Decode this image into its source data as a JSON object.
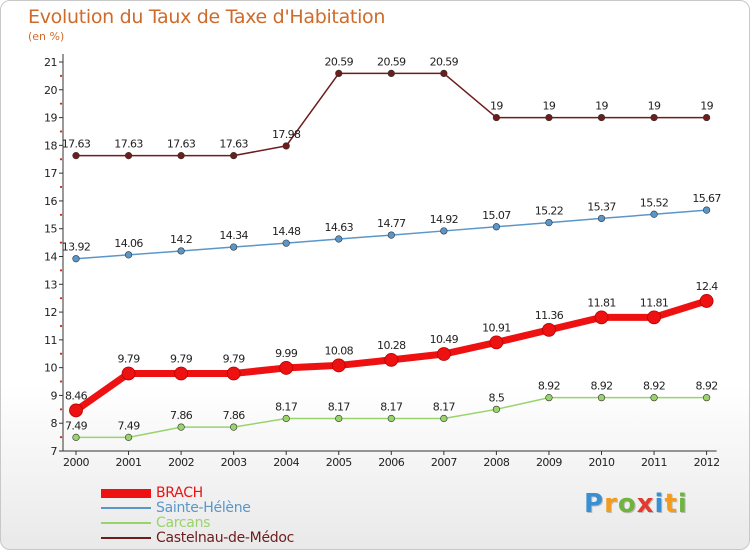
{
  "title": "Evolution du Taux de Taxe d'Habitation",
  "subtitle": "(en %)",
  "logo": {
    "text": "Proxiti",
    "letter_colors": [
      "#3a8fd3",
      "#f39b1c",
      "#6fb43f",
      "#e33a2e",
      "#3a8fd3",
      "#f39b1c",
      "#6fb43f"
    ]
  },
  "chart_data": {
    "type": "line",
    "x": [
      "2000",
      "2001",
      "2002",
      "2003",
      "2004",
      "2005",
      "2006",
      "2007",
      "2008",
      "2009",
      "2010",
      "2011",
      "2012"
    ],
    "ylim": [
      7,
      21
    ],
    "yticks": [
      7,
      8,
      9,
      10,
      11,
      12,
      13,
      14,
      15,
      16,
      17,
      18,
      19,
      20,
      21
    ],
    "grid": false,
    "legend_position": "bottom",
    "series": [
      {
        "name": "Castelnau-de-Médoc",
        "color": "#6e1c1c",
        "values": [
          17.63,
          17.63,
          17.63,
          17.63,
          17.98,
          20.59,
          20.59,
          20.59,
          19,
          19,
          19,
          19,
          19
        ],
        "labels": [
          "17.63",
          "17.63",
          "17.63",
          "17.63",
          "17.98",
          "20.59",
          "20.59",
          "20.59",
          "19",
          "19",
          "19",
          "19",
          "19"
        ]
      },
      {
        "name": "Sainte-Hélène",
        "color": "#5b96c8",
        "values": [
          13.92,
          14.06,
          14.2,
          14.34,
          14.48,
          14.63,
          14.77,
          14.92,
          15.07,
          15.22,
          15.37,
          15.52,
          15.67
        ],
        "labels": [
          "13.92",
          "14.06",
          "14.2",
          "14.34",
          "14.48",
          "14.63",
          "14.77",
          "14.92",
          "15.07",
          "15.22",
          "15.37",
          "15.52",
          "15.67"
        ]
      },
      {
        "name": "BRACH",
        "color": "#ee1111",
        "values": [
          8.46,
          9.79,
          9.79,
          9.79,
          9.99,
          10.08,
          10.28,
          10.49,
          10.91,
          11.36,
          11.81,
          11.81,
          12.4
        ],
        "labels": [
          "8.46",
          "9.79",
          "9.79",
          "9.79",
          "9.99",
          "10.08",
          "10.28",
          "10.49",
          "10.91",
          "11.36",
          "11.81",
          "11.81",
          "12.4"
        ]
      },
      {
        "name": "Carcans",
        "color": "#99d36b",
        "values": [
          7.49,
          7.49,
          7.86,
          7.86,
          8.17,
          8.17,
          8.17,
          8.17,
          8.5,
          8.92,
          8.92,
          8.92,
          8.92
        ],
        "labels": [
          "7.49",
          "7.49",
          "7.86",
          "7.86",
          "8.17",
          "8.17",
          "8.17",
          "8.17",
          "8.5",
          "8.92",
          "8.92",
          "8.92",
          "8.92"
        ]
      }
    ],
    "legend": [
      "BRACH",
      "Sainte-Hélène",
      "Carcans",
      "Castelnau-de-Médoc"
    ]
  }
}
